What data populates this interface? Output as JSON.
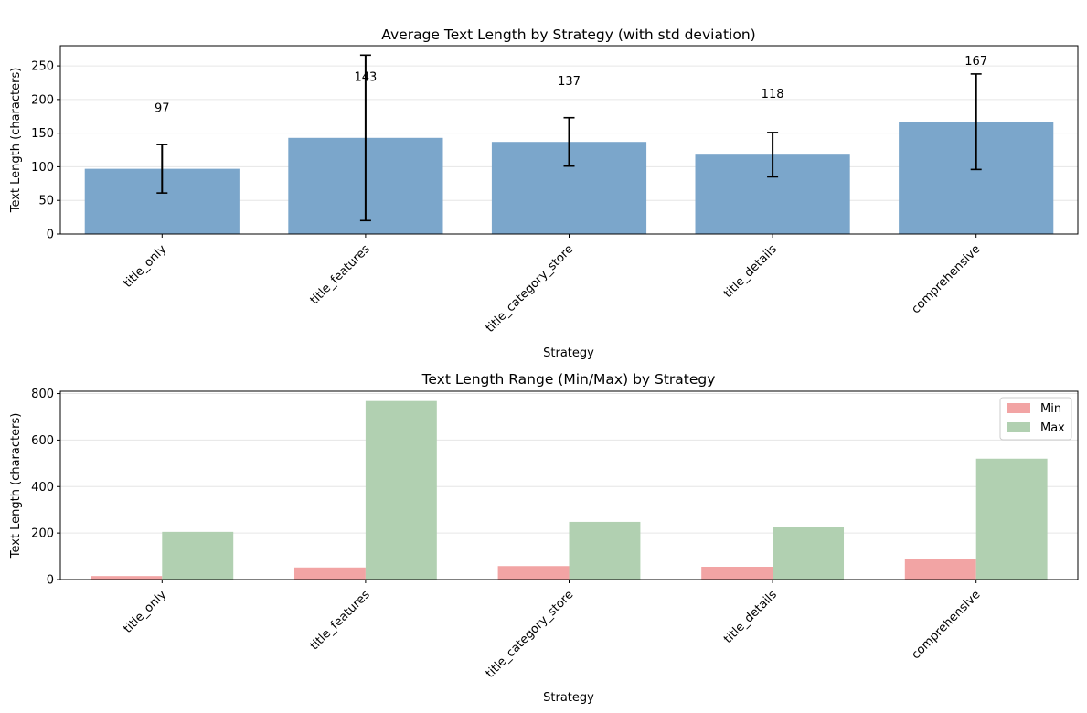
{
  "chart_data": [
    {
      "type": "bar",
      "title": "Average Text Length by Strategy (with std deviation)",
      "xlabel": "Strategy",
      "ylabel": "Text Length (characters)",
      "categories": [
        "title_only",
        "title_features",
        "title_category_store",
        "title_details",
        "comprehensive"
      ],
      "values": [
        97,
        143,
        137,
        118,
        167
      ],
      "error": [
        36,
        123,
        36,
        33,
        71
      ],
      "value_labels": [
        "97",
        "143",
        "137",
        "118",
        "167"
      ],
      "ylim": [
        0,
        280
      ],
      "yticks": [
        0,
        50,
        100,
        150,
        200,
        250
      ],
      "grid": "y",
      "color": "#7ba6cb"
    },
    {
      "type": "bar",
      "title": "Text Length Range (Min/Max) by Strategy",
      "xlabel": "Strategy",
      "ylabel": "Text Length (characters)",
      "categories": [
        "title_only",
        "title_features",
        "title_category_store",
        "title_details",
        "comprehensive"
      ],
      "series": [
        {
          "name": "Min",
          "values": [
            15,
            52,
            58,
            55,
            90
          ],
          "color": "#f2a4a4"
        },
        {
          "name": "Max",
          "values": [
            205,
            768,
            248,
            228,
            520
          ],
          "color": "#b1d0b1"
        }
      ],
      "ylim": [
        0,
        810
      ],
      "yticks": [
        0,
        200,
        400,
        600,
        800
      ],
      "grid": "y",
      "legend": "top-right"
    }
  ]
}
